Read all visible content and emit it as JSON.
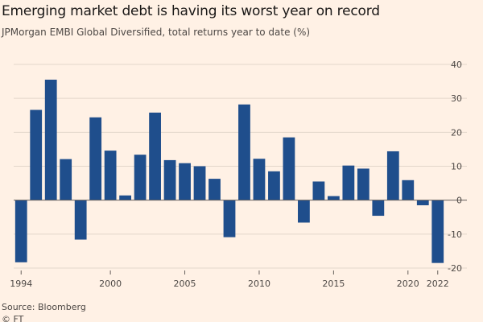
{
  "title": "Emerging market debt is having its worst year on record",
  "subtitle": "JPMorgan EMBI Global Diversified, total returns year to date (%)",
  "source": "Source: Bloomberg",
  "credit": "© FT",
  "colors": {
    "background": "#fff1e5",
    "bar": "#1f4e8c",
    "grid": "#e3d6ca",
    "zero_line": "#66605c",
    "text": "#4d4845"
  },
  "chart_data": {
    "type": "bar",
    "title": "Emerging market debt is having its worst year on record",
    "subtitle": "JPMorgan EMBI Global Diversified, total returns year to date (%)",
    "xlabel": "",
    "ylabel": "",
    "ylim": [
      -20,
      40
    ],
    "y_ticks": [
      40,
      30,
      20,
      10,
      0,
      -10,
      -20
    ],
    "x_tick_labels": [
      "1994",
      "2000",
      "2005",
      "2010",
      "2015",
      "2020",
      "2022"
    ],
    "categories": [
      1994,
      1995,
      1996,
      1997,
      1998,
      1999,
      2000,
      2001,
      2002,
      2003,
      2004,
      2005,
      2006,
      2007,
      2008,
      2009,
      2010,
      2011,
      2012,
      2013,
      2014,
      2015,
      2016,
      2017,
      2018,
      2019,
      2020,
      2021,
      2022
    ],
    "values": [
      -18.3,
      26.6,
      35.5,
      12.1,
      -11.6,
      24.4,
      14.6,
      1.4,
      13.4,
      25.8,
      11.8,
      10.9,
      10.0,
      6.3,
      -10.9,
      28.2,
      12.2,
      8.5,
      18.5,
      -6.6,
      5.5,
      1.2,
      10.2,
      9.3,
      -4.6,
      14.4,
      5.9,
      -1.5,
      -18.5
    ],
    "grid": true,
    "y_axis_position": "right"
  }
}
